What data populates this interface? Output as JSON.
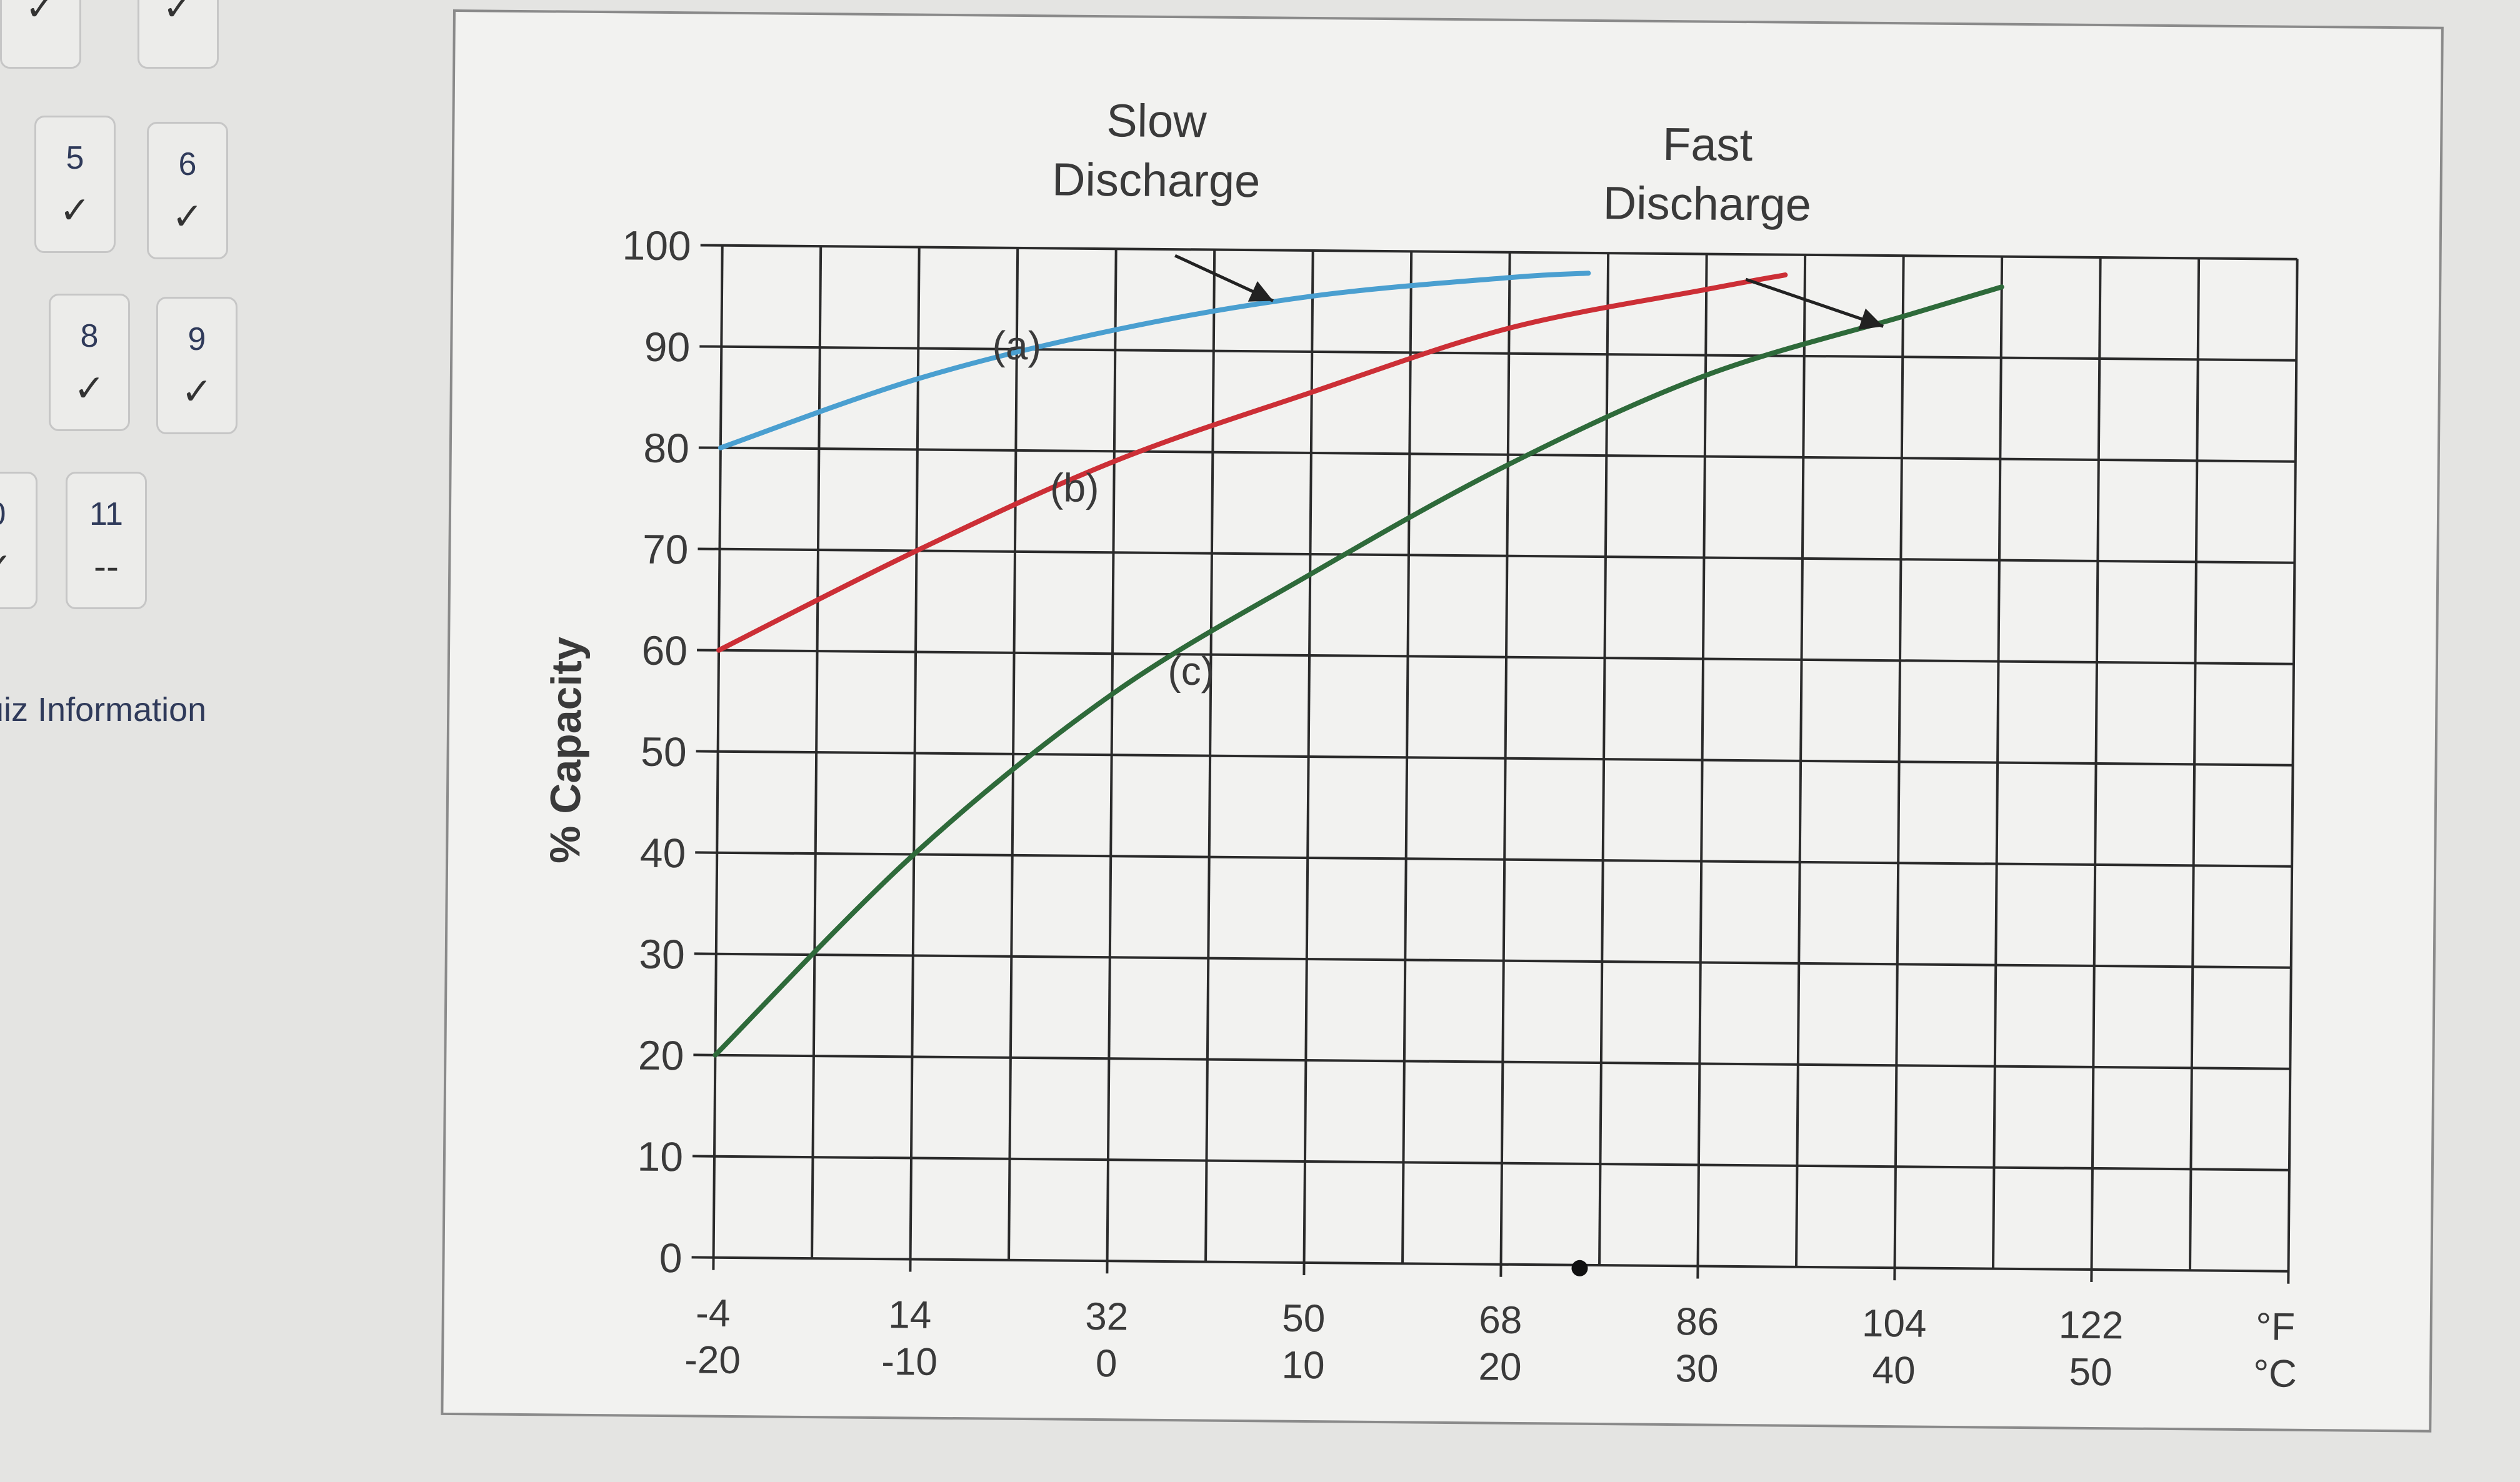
{
  "sidebar": {
    "questions": [
      {
        "number": "",
        "status": "✓"
      },
      {
        "number": "",
        "status": "✓"
      },
      {
        "number": "5",
        "status": "✓"
      },
      {
        "number": "6",
        "status": "✓"
      },
      {
        "number": "8",
        "status": "✓"
      },
      {
        "number": "9",
        "status": "✓"
      },
      {
        "number": "0",
        "status": "✓"
      },
      {
        "number": "11",
        "status": "--"
      }
    ],
    "quiz_info_label": "uiz Information"
  },
  "chart_data": {
    "type": "line",
    "ylabel": "% Capacity",
    "ylim": [
      0,
      100
    ],
    "yticks": [
      0,
      10,
      20,
      30,
      40,
      50,
      60,
      70,
      80,
      90,
      100
    ],
    "x_celsius": [
      -20,
      -10,
      0,
      10,
      20,
      30,
      40,
      50
    ],
    "x_fahrenheit": [
      -4,
      14,
      32,
      50,
      68,
      86,
      104,
      122
    ],
    "x_unit_fahrenheit": "°F",
    "x_unit_celsius": "°C",
    "xlim_celsius": [
      -20,
      60
    ],
    "grid": true,
    "series": [
      {
        "label": "(a)",
        "color": "#4a9fd0",
        "x": [
          -20,
          -10,
          0,
          10,
          20,
          24
        ],
        "y": [
          80,
          87,
          92,
          95.5,
          97.5,
          98
        ]
      },
      {
        "label": "(b)",
        "color": "#cc2f36",
        "x": [
          -20,
          -10,
          0,
          10,
          20,
          30,
          34
        ],
        "y": [
          60,
          70,
          79,
          86,
          92.5,
          96.5,
          98
        ]
      },
      {
        "label": "(c)",
        "color": "#2e6a3a",
        "x": [
          -20,
          -10,
          0,
          10,
          20,
          30,
          40,
          45
        ],
        "y": [
          20,
          40,
          56,
          68,
          79,
          88,
          94,
          97
        ]
      }
    ],
    "annotations": [
      {
        "text": [
          "Slow",
          "Discharge"
        ],
        "points_to": "(a)",
        "target": [
          8,
          95
        ]
      },
      {
        "text": [
          "Fast",
          "Discharge"
        ],
        "points_to": "(c)",
        "target": [
          39,
          93
        ]
      }
    ]
  }
}
